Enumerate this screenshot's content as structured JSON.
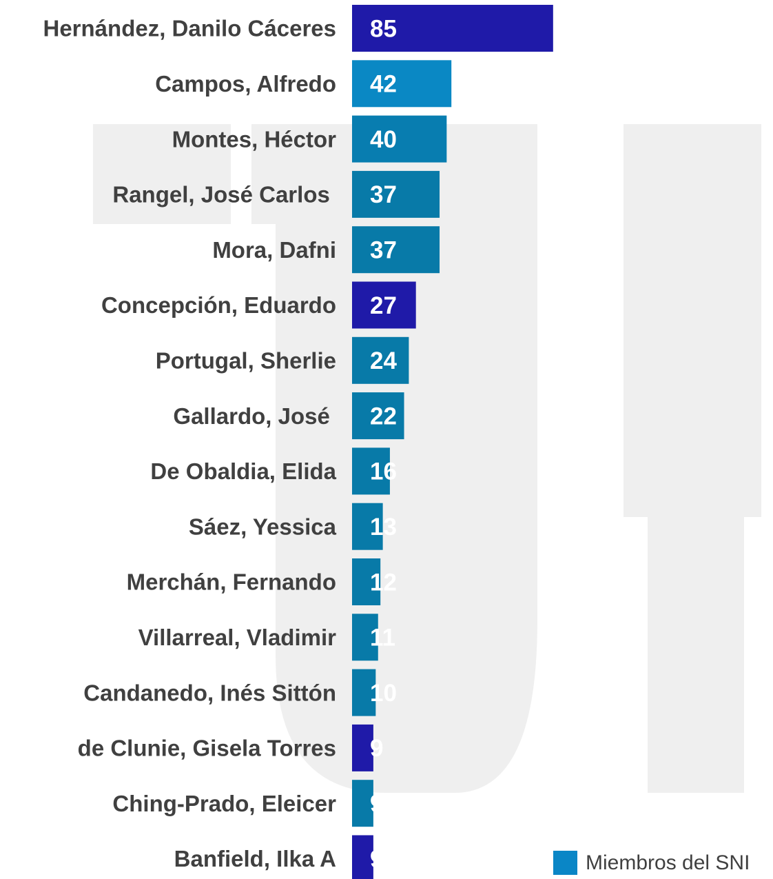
{
  "chart_data": {
    "type": "barh",
    "categories": [
      "Hernández, Danilo Cáceres",
      "Campos, Alfredo",
      "Montes, Héctor",
      "Rangel, José Carlos ",
      "Mora, Dafni",
      "Concepción, Eduardo",
      "Portugal, Sherlie",
      "Gallardo, José ",
      "De Obaldia, Elida",
      "Sáez, Yessica",
      "Merchán, Fernando",
      "Villarreal, Vladimir",
      "Candanedo, Inés Sittón",
      "de Clunie, Gisela Torres",
      "Ching-Prado, Eleicer",
      "Banfield, Ilka A"
    ],
    "series": [
      {
        "name": "Miembros del SNI",
        "color": "#0a86c6",
        "values": [
          85,
          42,
          40,
          37,
          37,
          27,
          24,
          22,
          16,
          13,
          12,
          11,
          10,
          9,
          9,
          9
        ],
        "bar_colors": [
          "#1f1aa8",
          "#0a88c4",
          "#087db0",
          "#087aa8",
          "#087aa8",
          "#1f1aa8",
          "#087aa8",
          "#087aa8",
          "#087aa8",
          "#087aa8",
          "#087aa8",
          "#087aa8",
          "#087aa8",
          "#1f1aa8",
          "#087aa8",
          "#1f1aa8"
        ]
      }
    ],
    "xlim": [
      0,
      90
    ],
    "legend": "bottom-right"
  }
}
